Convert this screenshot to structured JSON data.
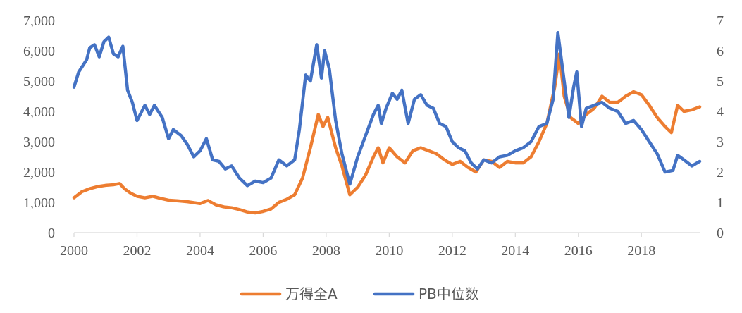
{
  "chart_data": {
    "type": "line",
    "title": "",
    "xlabel": "",
    "ylabel_left": "",
    "ylabel_right": "",
    "x_ticks": [
      "2000",
      "2002",
      "2004",
      "2006",
      "2008",
      "2010",
      "2012",
      "2014",
      "2016",
      "2018"
    ],
    "y_left_ticks": [
      "0",
      "1,000",
      "2,000",
      "3,000",
      "4,000",
      "5,000",
      "6,000",
      "7,000"
    ],
    "y_right_ticks": [
      "0",
      "1",
      "2",
      "3",
      "4",
      "5",
      "6",
      "7"
    ],
    "xlim": [
      2000,
      2019.85
    ],
    "ylim_left": [
      0,
      7000
    ],
    "ylim_right": [
      0,
      7
    ],
    "grid": false,
    "legend_position": "bottom",
    "series": [
      {
        "name": "万得全A",
        "axis": "left",
        "color": "#ED7D31",
        "points": [
          [
            2000.0,
            1150
          ],
          [
            2000.25,
            1350
          ],
          [
            2000.5,
            1450
          ],
          [
            2000.75,
            1520
          ],
          [
            2001.0,
            1560
          ],
          [
            2001.25,
            1580
          ],
          [
            2001.45,
            1620
          ],
          [
            2001.6,
            1450
          ],
          [
            2001.8,
            1300
          ],
          [
            2002.0,
            1200
          ],
          [
            2002.25,
            1150
          ],
          [
            2002.5,
            1200
          ],
          [
            2002.75,
            1130
          ],
          [
            2003.0,
            1070
          ],
          [
            2003.3,
            1050
          ],
          [
            2003.6,
            1020
          ],
          [
            2004.0,
            960
          ],
          [
            2004.25,
            1060
          ],
          [
            2004.5,
            920
          ],
          [
            2004.75,
            850
          ],
          [
            2005.0,
            820
          ],
          [
            2005.25,
            760
          ],
          [
            2005.5,
            680
          ],
          [
            2005.75,
            650
          ],
          [
            2006.0,
            700
          ],
          [
            2006.25,
            780
          ],
          [
            2006.5,
            1000
          ],
          [
            2006.75,
            1100
          ],
          [
            2007.0,
            1250
          ],
          [
            2007.25,
            1800
          ],
          [
            2007.5,
            2800
          ],
          [
            2007.75,
            3900
          ],
          [
            2007.9,
            3500
          ],
          [
            2008.05,
            3800
          ],
          [
            2008.3,
            2800
          ],
          [
            2008.5,
            2200
          ],
          [
            2008.75,
            1250
          ],
          [
            2009.0,
            1500
          ],
          [
            2009.25,
            1900
          ],
          [
            2009.5,
            2500
          ],
          [
            2009.65,
            2800
          ],
          [
            2009.8,
            2300
          ],
          [
            2010.0,
            2800
          ],
          [
            2010.25,
            2500
          ],
          [
            2010.5,
            2300
          ],
          [
            2010.75,
            2700
          ],
          [
            2011.0,
            2800
          ],
          [
            2011.25,
            2700
          ],
          [
            2011.5,
            2600
          ],
          [
            2011.75,
            2400
          ],
          [
            2012.0,
            2250
          ],
          [
            2012.25,
            2350
          ],
          [
            2012.5,
            2150
          ],
          [
            2012.75,
            2000
          ],
          [
            2013.0,
            2400
          ],
          [
            2013.25,
            2350
          ],
          [
            2013.5,
            2150
          ],
          [
            2013.75,
            2350
          ],
          [
            2014.0,
            2300
          ],
          [
            2014.25,
            2300
          ],
          [
            2014.5,
            2500
          ],
          [
            2014.75,
            3000
          ],
          [
            2015.0,
            3600
          ],
          [
            2015.25,
            4800
          ],
          [
            2015.4,
            5900
          ],
          [
            2015.55,
            4500
          ],
          [
            2015.75,
            3800
          ],
          [
            2016.0,
            3600
          ],
          [
            2016.25,
            3900
          ],
          [
            2016.5,
            4100
          ],
          [
            2016.75,
            4500
          ],
          [
            2017.0,
            4300
          ],
          [
            2017.25,
            4300
          ],
          [
            2017.5,
            4500
          ],
          [
            2017.75,
            4650
          ],
          [
            2018.0,
            4550
          ],
          [
            2018.25,
            4200
          ],
          [
            2018.5,
            3800
          ],
          [
            2018.75,
            3500
          ],
          [
            2018.95,
            3300
          ],
          [
            2019.15,
            4200
          ],
          [
            2019.35,
            4000
          ],
          [
            2019.6,
            4050
          ],
          [
            2019.85,
            4150
          ]
        ]
      },
      {
        "name": "PB中位数",
        "axis": "right",
        "color": "#4472C4",
        "points": [
          [
            2000.0,
            4.8
          ],
          [
            2000.15,
            5.3
          ],
          [
            2000.4,
            5.7
          ],
          [
            2000.5,
            6.1
          ],
          [
            2000.65,
            6.2
          ],
          [
            2000.8,
            5.8
          ],
          [
            2000.95,
            6.3
          ],
          [
            2001.1,
            6.45
          ],
          [
            2001.25,
            5.9
          ],
          [
            2001.4,
            5.8
          ],
          [
            2001.55,
            6.15
          ],
          [
            2001.7,
            4.7
          ],
          [
            2001.85,
            4.3
          ],
          [
            2002.0,
            3.7
          ],
          [
            2002.25,
            4.2
          ],
          [
            2002.4,
            3.9
          ],
          [
            2002.55,
            4.2
          ],
          [
            2002.8,
            3.8
          ],
          [
            2003.0,
            3.1
          ],
          [
            2003.15,
            3.4
          ],
          [
            2003.4,
            3.2
          ],
          [
            2003.6,
            2.9
          ],
          [
            2003.8,
            2.5
          ],
          [
            2004.0,
            2.7
          ],
          [
            2004.2,
            3.1
          ],
          [
            2004.4,
            2.4
          ],
          [
            2004.6,
            2.35
          ],
          [
            2004.8,
            2.1
          ],
          [
            2005.0,
            2.2
          ],
          [
            2005.25,
            1.8
          ],
          [
            2005.5,
            1.55
          ],
          [
            2005.75,
            1.7
          ],
          [
            2006.0,
            1.65
          ],
          [
            2006.25,
            1.8
          ],
          [
            2006.5,
            2.4
          ],
          [
            2006.75,
            2.2
          ],
          [
            2007.0,
            2.4
          ],
          [
            2007.15,
            3.4
          ],
          [
            2007.35,
            5.2
          ],
          [
            2007.5,
            5.0
          ],
          [
            2007.7,
            6.2
          ],
          [
            2007.85,
            5.1
          ],
          [
            2007.95,
            6.0
          ],
          [
            2008.1,
            5.4
          ],
          [
            2008.3,
            3.7
          ],
          [
            2008.5,
            2.6
          ],
          [
            2008.75,
            1.6
          ],
          [
            2009.0,
            2.5
          ],
          [
            2009.25,
            3.2
          ],
          [
            2009.5,
            3.9
          ],
          [
            2009.65,
            4.2
          ],
          [
            2009.75,
            3.6
          ],
          [
            2009.9,
            4.1
          ],
          [
            2010.1,
            4.6
          ],
          [
            2010.25,
            4.4
          ],
          [
            2010.4,
            4.7
          ],
          [
            2010.6,
            3.6
          ],
          [
            2010.8,
            4.4
          ],
          [
            2011.0,
            4.55
          ],
          [
            2011.2,
            4.2
          ],
          [
            2011.4,
            4.1
          ],
          [
            2011.6,
            3.6
          ],
          [
            2011.8,
            3.5
          ],
          [
            2012.0,
            3.0
          ],
          [
            2012.2,
            2.8
          ],
          [
            2012.4,
            2.7
          ],
          [
            2012.6,
            2.3
          ],
          [
            2012.8,
            2.1
          ],
          [
            2013.0,
            2.4
          ],
          [
            2013.25,
            2.3
          ],
          [
            2013.5,
            2.5
          ],
          [
            2013.75,
            2.55
          ],
          [
            2014.0,
            2.7
          ],
          [
            2014.25,
            2.8
          ],
          [
            2014.5,
            3.0
          ],
          [
            2014.75,
            3.5
          ],
          [
            2015.0,
            3.6
          ],
          [
            2015.2,
            4.4
          ],
          [
            2015.35,
            6.6
          ],
          [
            2015.5,
            5.4
          ],
          [
            2015.7,
            3.8
          ],
          [
            2015.85,
            4.8
          ],
          [
            2015.95,
            5.3
          ],
          [
            2016.1,
            3.5
          ],
          [
            2016.25,
            4.1
          ],
          [
            2016.5,
            4.2
          ],
          [
            2016.75,
            4.3
          ],
          [
            2017.0,
            4.1
          ],
          [
            2017.25,
            4.0
          ],
          [
            2017.5,
            3.6
          ],
          [
            2017.75,
            3.7
          ],
          [
            2018.0,
            3.4
          ],
          [
            2018.25,
            3.0
          ],
          [
            2018.5,
            2.6
          ],
          [
            2018.75,
            2.0
          ],
          [
            2019.0,
            2.05
          ],
          [
            2019.15,
            2.55
          ],
          [
            2019.35,
            2.4
          ],
          [
            2019.6,
            2.2
          ],
          [
            2019.85,
            2.35
          ]
        ]
      }
    ]
  }
}
